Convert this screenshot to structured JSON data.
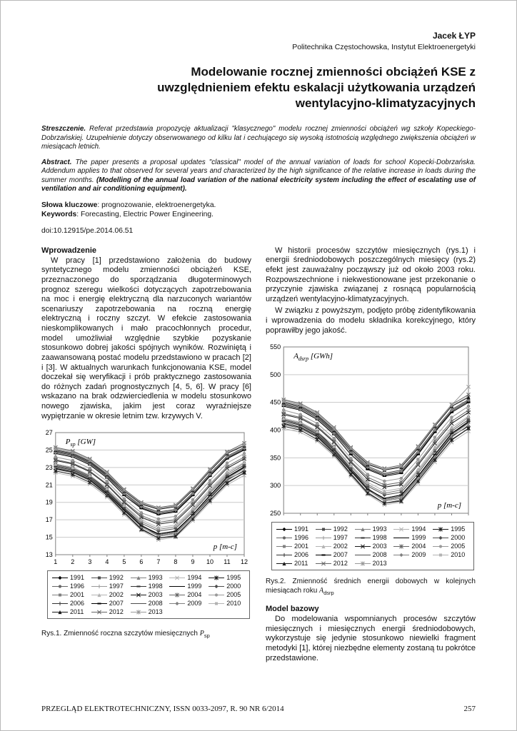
{
  "page": {
    "author": "Jacek ŁYP",
    "affiliation": "Politechnika Częstochowska, Instytut Elektroenergetyki",
    "title": "Modelowanie rocznej zmienności obciążeń KSE z uwzględnieniem efektu eskalacji użytkowania urządzeń wentylacyjno-klimatyzacyjnych",
    "doi": "doi:10.12915/pe.2014.06.51",
    "footer_journal": "PRZEGLĄD ELEKTROTECHNICZNY, ISSN 0033-2097, R. 90 NR 6/2014",
    "footer_page": "257"
  },
  "abstract_pl": {
    "label": "Streszczenie.",
    "text": " Referat przedstawia propozycję aktualizacji \"klasycznego\" modelu rocznej zmienności obciążeń wg szkoły Kopeckiego-Dobrzańskiej. Uzupełnienie dotyczy obserwowanego od kilku lat i cechującego się wysoką istotnością względnego zwiększenia obciążeń w miesiącach letnich."
  },
  "abstract_en": {
    "label": "Abstract.",
    "text": " The paper presents a proposal updates \"classical\" model of the annual variation of loads for school Kopecki-Dobrzańska. Addendum applies to that observed for several years and characterized by the high significance of the relative increase in loads during the summer months. ",
    "translated_title": "(Modelling of the annual load variation of the national electricity system including the effect of escalating use of ventilation and air conditioning equipment)."
  },
  "keywords_pl": {
    "label": "Słowa kluczowe",
    "text": ": prognozowanie, elektroenergetyka."
  },
  "keywords_en": {
    "label": "Keywords",
    "text": ": Forecasting, Electric Power Engineering."
  },
  "sections": {
    "intro": {
      "heading": "Wprowadzenie",
      "p1": "W pracy [1] przedstawiono założenia do budowy syntetycznego modelu zmienności obciążeń KSE, przeznaczonego do sporządzania długoterminowych prognoz szeregu wielkości dotyczących zapotrzebowania na moc i energię elektryczną dla narzuconych wariantów scenariuszy zapotrzebowania na roczną energię elektryczną i roczny szczyt. W efekcie zastosowania nieskomplikowanych i mało pracochłonnych procedur, model umożliwiał względnie szybkie pozyskanie stosunkowo dobrej jakości spójnych wyników. Rozwiniętą i zaawansowaną postać modelu przedstawiono w pracach [2] i [3]. W aktualnych warunkach funkcjonowania KSE, model doczekał się weryfikacji i prób praktycznego zastosowania do różnych zadań prognostycznych [4, 5, 6]. W pracy [6] wskazano na brak odzwierciedlenia w modelu stosunkowo nowego zjawiska, jakim jest coraz wyraźniejsze wypiętrzanie w okresie letnim tzw. krzywych V."
    },
    "history": {
      "p1": "W historii procesów szczytów miesięcznych (rys.1) i energii średniodobowych poszczególnych miesięcy (rys.2) efekt jest zauważalny począwszy już od około 2003 roku. Rozpowszechnione i niekwestionowane jest przekonanie o przyczynie zjawiska związanej z rosnącą popularnością urządzeń wentylacyjno-klimatyzacyjnych.",
      "p2": "W związku z powyższym, podjęto próbę zidentyfikowania i wprowadzenia do modelu składnika korekcyjnego, który poprawiłby jego jakość."
    },
    "model": {
      "heading": "Model bazowy",
      "p1": "Do modelowania wspomnianych procesów szczytów miesięcznych i miesięcznych energii średniodobowych, wykorzystuje się jedynie stosunkowo niewielki fragment metodyki [1], której niezbędne elementy zostaną tu pokrótce przedstawione."
    }
  },
  "fig1_caption": {
    "prefix": "Rys.1. Zmienność roczna szczytów miesięcznych ",
    "var": "P",
    "sub": "sp"
  },
  "fig2_caption": {
    "prefix": "Rys.2. Zmienność średnich energii dobowych w kolejnych miesiącach roku ",
    "var": "A",
    "sub": "dsrp"
  },
  "chart_data": [
    {
      "id": "fig1",
      "type": "line",
      "title": "Zmienność roczna szczytów miesięcznych Psp",
      "xlabel": "p [m-c]",
      "ylabel": "Psp [GW]",
      "ylabel_parts": {
        "main": "P",
        "sub": "sp",
        "unit": " [GW]"
      },
      "x": [
        1,
        2,
        3,
        4,
        5,
        6,
        7,
        8,
        9,
        10,
        11,
        12
      ],
      "ylim": [
        13,
        27
      ],
      "yticks": [
        13,
        15,
        17,
        19,
        21,
        23,
        25,
        27
      ],
      "show_x_tick_labels": true,
      "grid": "horizontal",
      "legend_position": "bottom",
      "series": [
        {
          "name": "1991",
          "values": [
            23.4,
            23.0,
            22.1,
            20.4,
            18.4,
            16.4,
            15.2,
            15.5,
            17.4,
            19.5,
            21.6,
            22.6
          ]
        },
        {
          "name": "1992",
          "values": [
            22.8,
            22.4,
            21.5,
            19.9,
            17.9,
            16.0,
            14.9,
            15.2,
            17.1,
            19.2,
            21.3,
            22.4
          ]
        },
        {
          "name": "1993",
          "values": [
            23.0,
            22.6,
            21.7,
            20.1,
            18.1,
            16.2,
            15.1,
            15.4,
            17.3,
            19.4,
            21.5,
            22.7
          ]
        },
        {
          "name": "1994",
          "values": [
            22.4,
            22.0,
            21.1,
            19.6,
            17.6,
            15.8,
            14.7,
            15.0,
            16.9,
            19.0,
            21.0,
            22.1
          ]
        },
        {
          "name": "1995",
          "values": [
            22.6,
            22.2,
            21.3,
            19.8,
            17.8,
            15.9,
            14.9,
            15.1,
            17.1,
            19.2,
            21.2,
            22.4
          ]
        },
        {
          "name": "1996",
          "values": [
            23.2,
            22.8,
            21.9,
            20.3,
            18.3,
            16.4,
            15.3,
            15.6,
            17.5,
            19.7,
            21.8,
            23.0
          ]
        },
        {
          "name": "1997",
          "values": [
            22.9,
            22.5,
            21.6,
            20.0,
            18.1,
            16.2,
            15.2,
            15.5,
            17.4,
            19.6,
            21.7,
            22.9
          ]
        },
        {
          "name": "1998",
          "values": [
            23.1,
            22.7,
            21.8,
            20.2,
            18.2,
            16.3,
            15.4,
            15.7,
            17.6,
            19.8,
            21.9,
            23.1
          ]
        },
        {
          "name": "1999",
          "values": [
            22.9,
            22.5,
            21.6,
            20.0,
            18.1,
            16.3,
            15.4,
            15.7,
            17.6,
            19.8,
            21.9,
            23.0
          ]
        },
        {
          "name": "2000",
          "values": [
            23.3,
            22.9,
            22.0,
            20.4,
            18.4,
            16.6,
            15.7,
            16.0,
            17.9,
            20.1,
            22.1,
            23.3
          ]
        },
        {
          "name": "2001",
          "values": [
            23.4,
            23.0,
            22.1,
            20.6,
            18.6,
            16.8,
            15.9,
            16.2,
            18.1,
            20.3,
            22.3,
            23.5
          ]
        },
        {
          "name": "2002",
          "values": [
            23.4,
            23.0,
            22.1,
            20.6,
            18.7,
            17.0,
            16.1,
            16.4,
            18.3,
            20.5,
            22.5,
            23.6
          ]
        },
        {
          "name": "2003",
          "values": [
            23.8,
            23.4,
            22.5,
            21.0,
            19.0,
            17.3,
            16.5,
            16.8,
            18.7,
            20.9,
            22.9,
            24.0
          ]
        },
        {
          "name": "2004",
          "values": [
            23.9,
            23.5,
            22.6,
            21.1,
            19.1,
            17.5,
            16.7,
            17.0,
            18.9,
            21.1,
            23.1,
            24.2
          ]
        },
        {
          "name": "2005",
          "values": [
            24.2,
            23.8,
            22.9,
            21.4,
            19.4,
            17.8,
            17.1,
            17.4,
            19.3,
            21.5,
            23.5,
            24.6
          ]
        },
        {
          "name": "2006",
          "values": [
            24.8,
            24.4,
            23.5,
            22.0,
            20.0,
            18.4,
            17.7,
            18.0,
            19.9,
            22.1,
            24.1,
            25.1
          ]
        },
        {
          "name": "2007",
          "values": [
            24.6,
            24.2,
            23.3,
            21.8,
            19.8,
            18.3,
            17.6,
            17.9,
            19.8,
            22.0,
            24.0,
            25.0
          ]
        },
        {
          "name": "2008",
          "values": [
            24.9,
            24.5,
            23.6,
            22.1,
            20.1,
            18.6,
            17.9,
            18.2,
            20.1,
            22.3,
            24.3,
            25.3
          ]
        },
        {
          "name": "2009",
          "values": [
            24.7,
            24.3,
            23.4,
            21.9,
            20.0,
            18.5,
            17.8,
            18.1,
            20.0,
            22.2,
            24.2,
            25.2
          ]
        },
        {
          "name": "2010",
          "values": [
            25.2,
            24.8,
            23.9,
            22.4,
            20.4,
            18.9,
            18.2,
            18.5,
            20.4,
            22.6,
            24.6,
            25.6
          ]
        },
        {
          "name": "2011",
          "values": [
            25.0,
            24.6,
            23.7,
            22.2,
            20.3,
            18.8,
            18.2,
            18.5,
            20.4,
            22.6,
            24.6,
            25.5
          ]
        },
        {
          "name": "2012",
          "values": [
            25.3,
            24.9,
            24.0,
            22.5,
            20.5,
            19.0,
            18.4,
            18.7,
            20.6,
            22.8,
            24.8,
            25.8
          ]
        },
        {
          "name": "2013",
          "values": [
            25.1,
            24.7,
            23.8,
            22.3,
            20.4,
            18.9,
            18.3,
            18.6,
            20.5,
            22.7,
            24.7,
            25.6
          ]
        }
      ]
    },
    {
      "id": "fig2",
      "type": "line",
      "title": "Zmienność średnich energii dobowych w kolejnych miesiącach roku Adsrp",
      "xlabel": "p [m-c]",
      "ylabel": "Adsrp [GWh]",
      "ylabel_parts": {
        "main": "A",
        "sub": "dsrp",
        "unit": " [GWh]"
      },
      "x": [
        1,
        2,
        3,
        4,
        5,
        6,
        7,
        8,
        9,
        10,
        11,
        12
      ],
      "ylim": [
        250,
        550
      ],
      "yticks": [
        250,
        300,
        350,
        400,
        450,
        500,
        550
      ],
      "show_x_tick_labels": false,
      "grid": "horizontal",
      "legend_position": "bottom",
      "series": [
        {
          "name": "1991",
          "values": [
            421,
            414,
            398,
            367,
            331,
            295,
            274,
            279,
            313,
            351,
            389,
            407
          ]
        },
        {
          "name": "1992",
          "values": [
            410,
            403,
            387,
            358,
            322,
            288,
            268,
            274,
            308,
            346,
            383,
            403
          ]
        },
        {
          "name": "1993",
          "values": [
            414,
            407,
            391,
            362,
            326,
            292,
            272,
            277,
            311,
            349,
            387,
            409
          ]
        },
        {
          "name": "1994",
          "values": [
            403,
            396,
            380,
            353,
            317,
            284,
            265,
            270,
            304,
            342,
            378,
            398
          ]
        },
        {
          "name": "1995",
          "values": [
            407,
            400,
            383,
            356,
            320,
            286,
            268,
            272,
            308,
            346,
            382,
            403
          ]
        },
        {
          "name": "1996",
          "values": [
            418,
            410,
            394,
            365,
            329,
            295,
            275,
            281,
            315,
            355,
            392,
            414
          ]
        },
        {
          "name": "1997",
          "values": [
            412,
            405,
            389,
            360,
            326,
            292,
            274,
            279,
            313,
            353,
            391,
            412
          ]
        },
        {
          "name": "1998",
          "values": [
            416,
            409,
            392,
            364,
            328,
            293,
            277,
            283,
            317,
            356,
            394,
            416
          ]
        },
        {
          "name": "1999",
          "values": [
            412,
            405,
            389,
            360,
            326,
            293,
            277,
            283,
            317,
            356,
            394,
            414
          ]
        },
        {
          "name": "2000",
          "values": [
            419,
            412,
            396,
            367,
            331,
            299,
            283,
            288,
            322,
            362,
            398,
            419
          ]
        },
        {
          "name": "2001",
          "values": [
            421,
            414,
            398,
            371,
            335,
            302,
            286,
            292,
            326,
            365,
            401,
            423
          ]
        },
        {
          "name": "2002",
          "values": [
            421,
            414,
            398,
            371,
            337,
            306,
            290,
            295,
            329,
            369,
            405,
            425
          ]
        },
        {
          "name": "2003",
          "values": [
            428,
            421,
            405,
            378,
            342,
            311,
            297,
            302,
            337,
            376,
            412,
            432
          ]
        },
        {
          "name": "2004",
          "values": [
            430,
            423,
            407,
            380,
            344,
            315,
            301,
            306,
            340,
            380,
            416,
            436
          ]
        },
        {
          "name": "2005",
          "values": [
            436,
            428,
            412,
            385,
            349,
            320,
            308,
            313,
            347,
            387,
            423,
            443
          ]
        },
        {
          "name": "2006",
          "values": [
            446,
            439,
            423,
            396,
            360,
            331,
            319,
            324,
            358,
            398,
            434,
            452
          ]
        },
        {
          "name": "2007",
          "values": [
            443,
            436,
            419,
            392,
            356,
            329,
            317,
            322,
            356,
            396,
            432,
            450
          ]
        },
        {
          "name": "2008",
          "values": [
            448,
            441,
            425,
            398,
            362,
            335,
            322,
            328,
            362,
            401,
            437,
            455
          ]
        },
        {
          "name": "2009",
          "values": [
            445,
            437,
            421,
            394,
            360,
            333,
            320,
            326,
            360,
            400,
            436,
            454
          ]
        },
        {
          "name": "2010",
          "values": [
            454,
            446,
            430,
            403,
            367,
            340,
            328,
            333,
            367,
            407,
            443,
            461
          ]
        },
        {
          "name": "2011",
          "values": [
            450,
            443,
            427,
            400,
            365,
            338,
            328,
            333,
            367,
            407,
            443,
            459
          ]
        },
        {
          "name": "2012",
          "values": [
            455,
            448,
            432,
            405,
            369,
            342,
            331,
            337,
            371,
            410,
            446,
            464
          ]
        },
        {
          "name": "2013",
          "values": [
            452,
            445,
            429,
            402,
            367,
            340,
            329,
            335,
            369,
            409,
            445,
            478
          ]
        }
      ]
    }
  ]
}
